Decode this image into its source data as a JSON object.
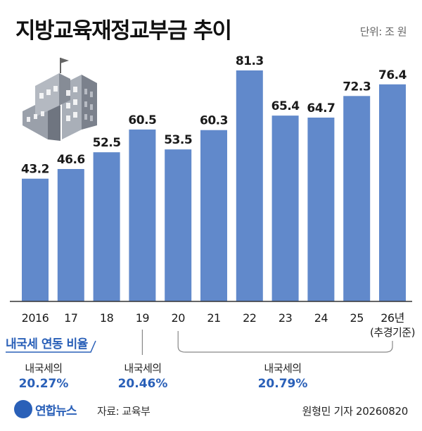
{
  "header": {
    "title": "지방교육재정교부금 추이",
    "unit": "단위: 조 원"
  },
  "note": {
    "title": "내국세 연동 비율",
    "groups": [
      {
        "label": "내국세의",
        "value": "20.27%"
      },
      {
        "label": "내국세의",
        "value": "20.46%"
      },
      {
        "label": "내국세의",
        "value": "20.79%"
      }
    ]
  },
  "footer": {
    "logo": "연합뉴스",
    "source": "자료: 교육부",
    "credit": "원형민 기자  20260820"
  },
  "colors": {
    "bar": "#6189cb",
    "accent": "#2a60b8"
  },
  "chart_data": {
    "type": "bar",
    "title": "지방교육재정교부금 추이",
    "categories": [
      "2016",
      "17",
      "18",
      "19",
      "20",
      "21",
      "22",
      "23",
      "24",
      "25",
      "26년"
    ],
    "category_note": "(추경기준)",
    "values": [
      43.2,
      46.6,
      52.5,
      60.5,
      53.5,
      60.3,
      81.3,
      65.4,
      64.7,
      72.3,
      76.4
    ],
    "value_labels": [
      "43.2",
      "46.6",
      "52.5",
      "60.5",
      "53.5",
      "60.3",
      "81.3",
      "65.4",
      "64.7",
      "72.3",
      "76.4"
    ],
    "ylim": [
      0,
      81.3
    ],
    "grid": false,
    "legend": "none"
  }
}
